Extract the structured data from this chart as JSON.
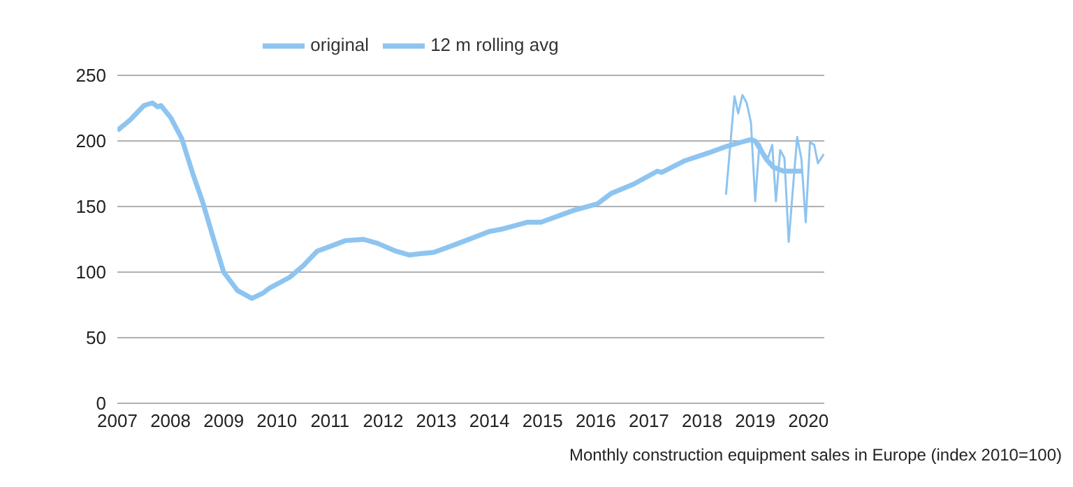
{
  "chart_data": {
    "type": "line",
    "annotations": [
      "Monthly construction equipment sales in Europe (index 2010=100)"
    ],
    "xlim": [
      2007,
      2020.3
    ],
    "xticks": [
      2007,
      2008,
      2009,
      2010,
      2011,
      2012,
      2013,
      2014,
      2015,
      2016,
      2017,
      2018,
      2019,
      2020
    ],
    "ylim": [
      0,
      250
    ],
    "yticks": [
      0,
      50,
      100,
      150,
      200,
      250
    ],
    "grid": "y",
    "legend": "top",
    "marker": "none",
    "line_style": "solid",
    "series": [
      {
        "name": "original",
        "color": "#8ec4f0",
        "x": [
          2018.45,
          2018.61,
          2018.68,
          2018.76,
          2018.84,
          2018.92,
          2019.0,
          2019.08,
          2019.16,
          2019.24,
          2019.32,
          2019.39,
          2019.47,
          2019.55,
          2019.63,
          2019.71,
          2019.79,
          2019.87,
          2019.95,
          2020.03,
          2020.11,
          2020.18,
          2020.29
        ],
        "values": [
          159,
          234,
          221,
          235,
          229,
          214,
          154,
          198,
          191,
          187,
          197,
          154,
          193,
          187,
          123,
          164,
          203,
          186,
          138,
          199,
          197,
          183,
          190
        ]
      },
      {
        "name": "12 m rolling avg",
        "color": "#8ec4f0",
        "x": [
          2007.0,
          2007.24,
          2007.5,
          2007.66,
          2007.76,
          2007.82,
          2008.0,
          2008.21,
          2008.42,
          2008.6,
          2008.82,
          2009.0,
          2009.26,
          2009.53,
          2009.74,
          2009.87,
          2010.24,
          2010.5,
          2010.76,
          2011.03,
          2011.29,
          2011.63,
          2011.89,
          2012.24,
          2012.5,
          2012.68,
          2012.95,
          2013.29,
          2013.55,
          2014.0,
          2014.26,
          2014.71,
          2014.97,
          2015.58,
          2016.03,
          2016.29,
          2016.71,
          2017.16,
          2017.24,
          2017.68,
          2018.13,
          2018.47,
          2018.82,
          2018.92,
          2019.0,
          2019.21,
          2019.34,
          2019.53,
          2019.87
        ],
        "values": [
          208,
          216,
          227,
          229,
          226,
          227,
          218,
          202,
          175,
          154,
          124,
          100,
          86,
          80,
          84,
          88,
          96,
          105,
          116,
          120,
          124,
          125,
          122,
          116,
          113,
          114,
          115,
          120,
          124,
          131,
          133,
          138,
          138,
          147,
          152,
          160,
          167,
          177,
          176,
          185,
          191,
          196,
          200,
          201,
          200,
          186,
          180,
          177,
          177
        ]
      }
    ]
  }
}
